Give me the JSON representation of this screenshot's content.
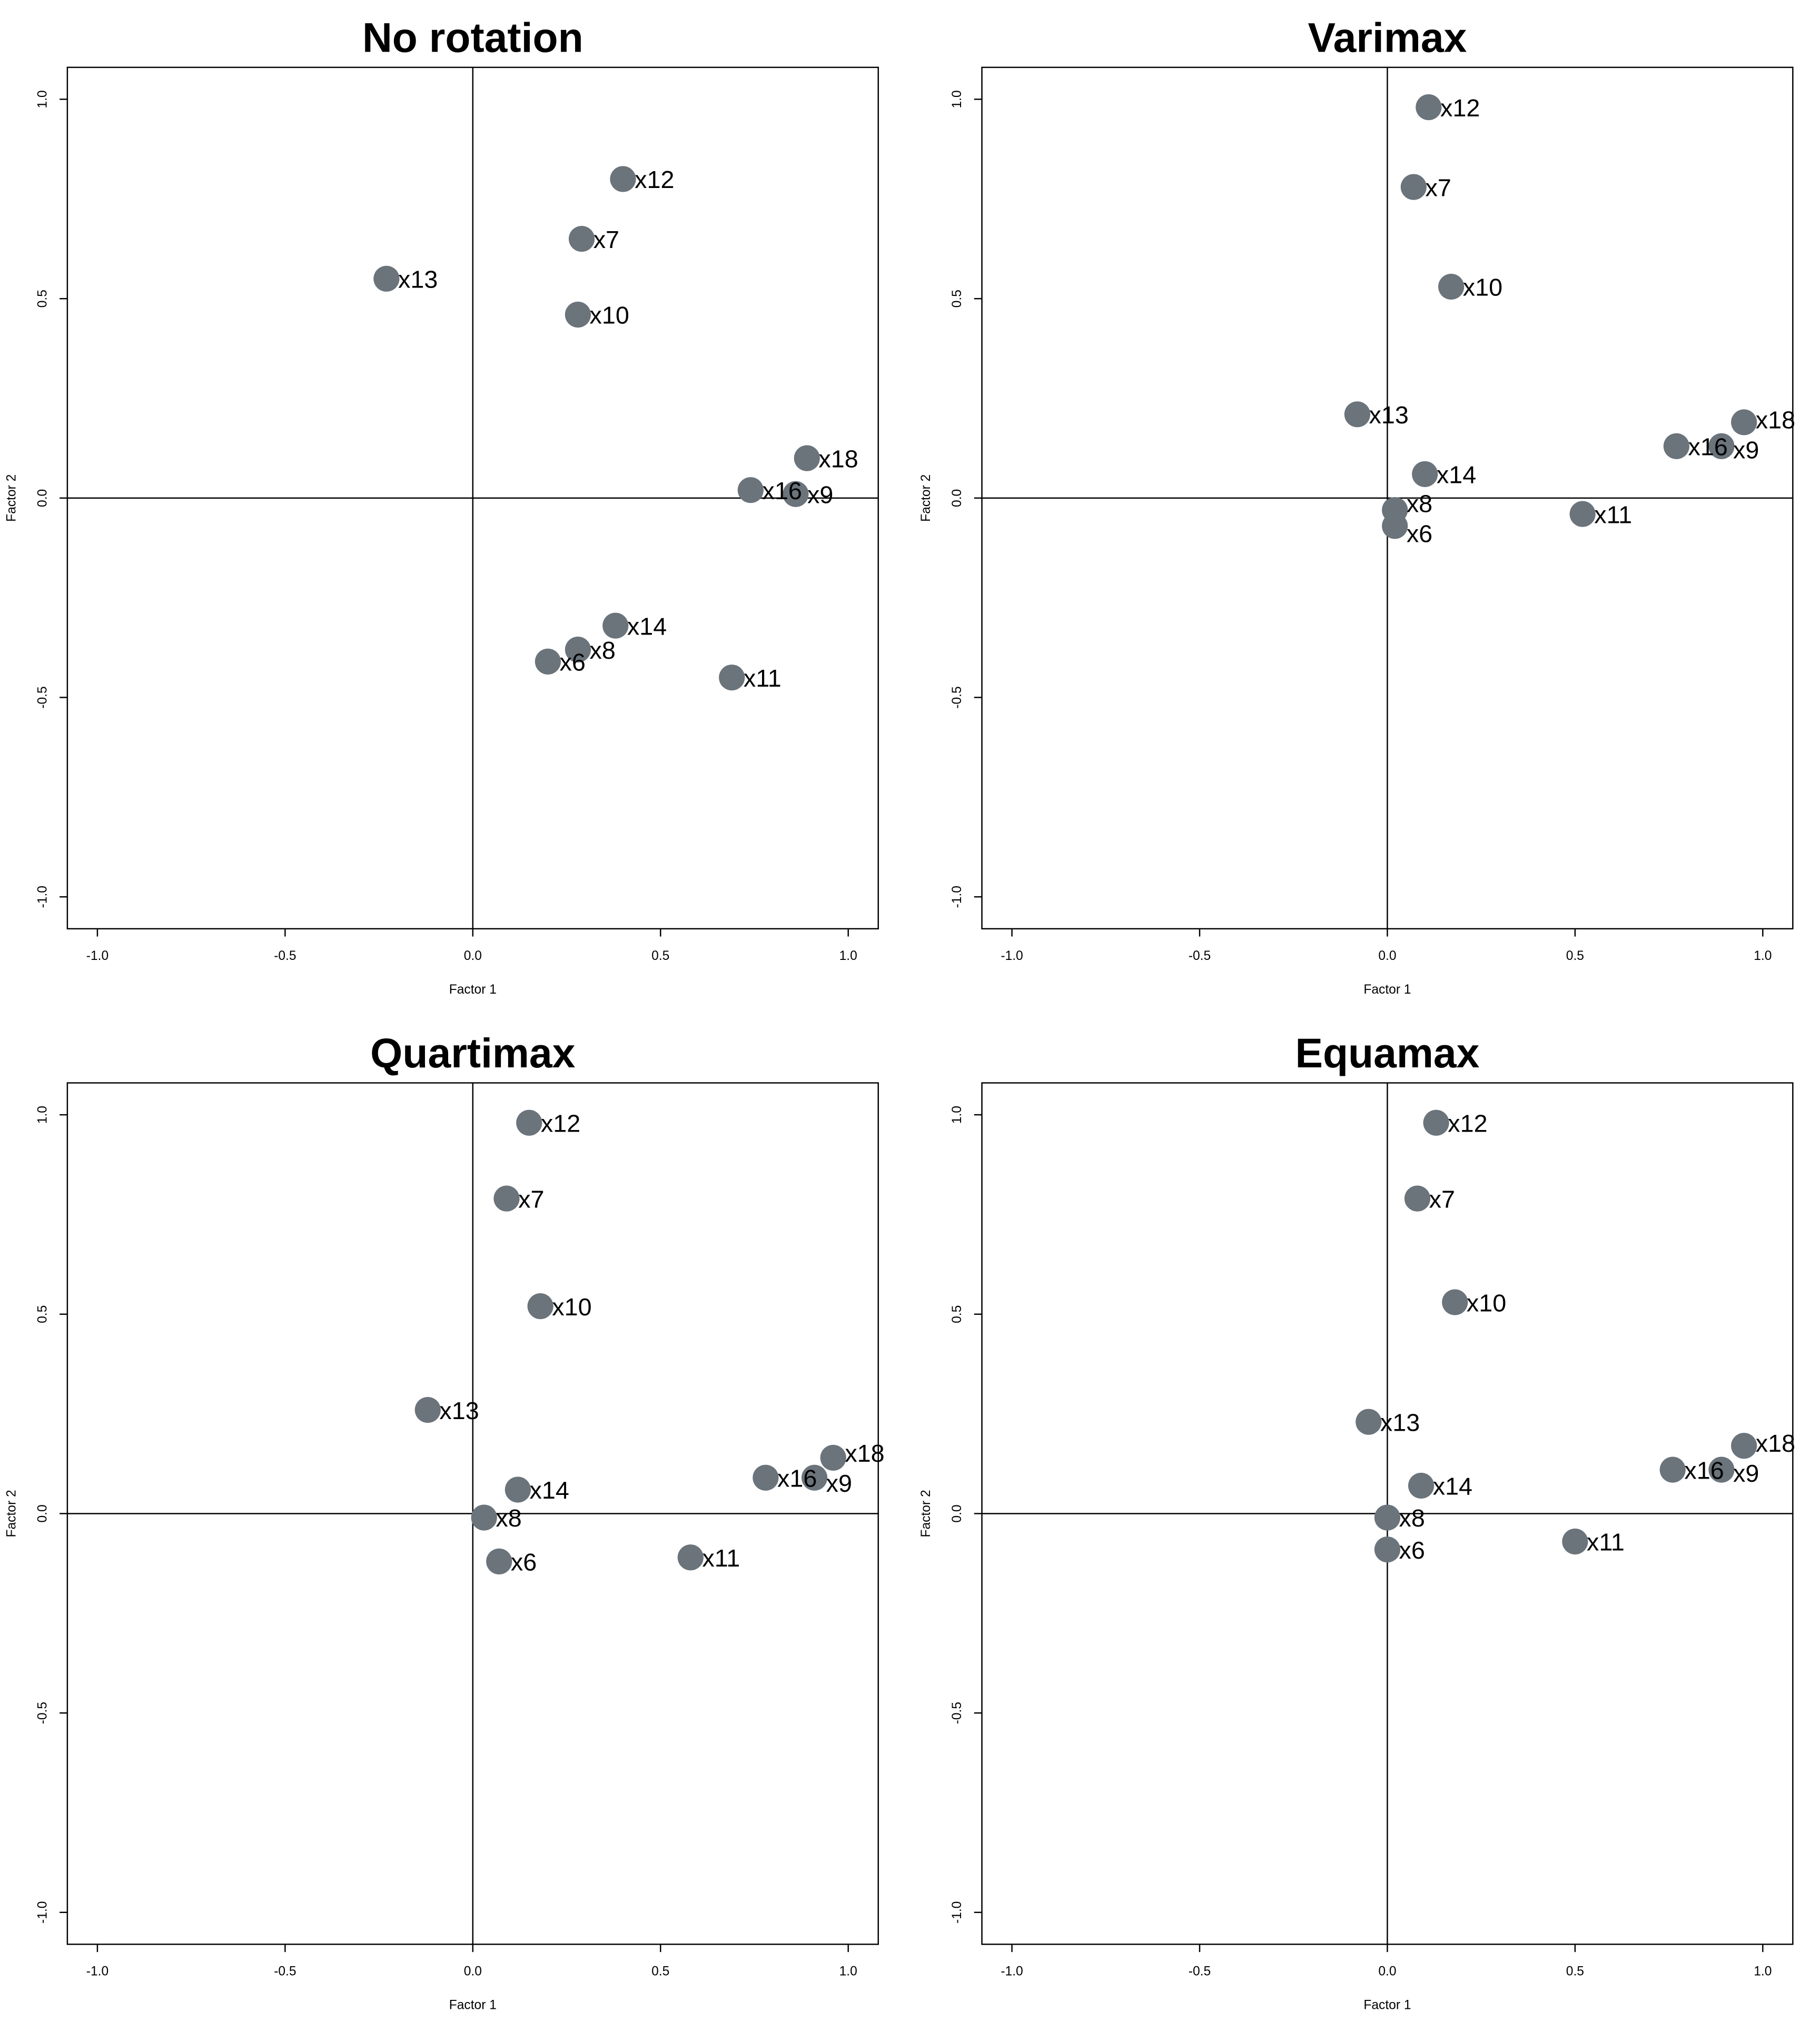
{
  "point_color": "#6b737b",
  "chart_data": [
    {
      "type": "scatter",
      "title": "No rotation",
      "xlabel": "Factor 1",
      "ylabel": "Factor 2",
      "xlim": [
        -1.08,
        1.08
      ],
      "ylim": [
        -1.08,
        1.08
      ],
      "xticks": [
        "-1.0",
        "-0.5",
        "0.0",
        "0.5",
        "1.0"
      ],
      "yticks": [
        "-1.0",
        "-0.5",
        "0.0",
        "0.5",
        "1.0"
      ],
      "points": [
        {
          "label": "x12",
          "x": 0.4,
          "y": 0.8
        },
        {
          "label": "x7",
          "x": 0.29,
          "y": 0.65
        },
        {
          "label": "x13",
          "x": -0.23,
          "y": 0.55
        },
        {
          "label": "x10",
          "x": 0.28,
          "y": 0.46
        },
        {
          "label": "x18",
          "x": 0.89,
          "y": 0.1
        },
        {
          "label": "x16",
          "x": 0.74,
          "y": 0.02
        },
        {
          "label": "x9",
          "x": 0.86,
          "y": 0.01
        },
        {
          "label": "x14",
          "x": 0.38,
          "y": -0.32
        },
        {
          "label": "x8",
          "x": 0.28,
          "y": -0.38
        },
        {
          "label": "x6",
          "x": 0.2,
          "y": -0.41
        },
        {
          "label": "x11",
          "x": 0.69,
          "y": -0.45
        }
      ]
    },
    {
      "type": "scatter",
      "title": "Varimax",
      "xlabel": "Factor 1",
      "ylabel": "Factor 2",
      "xlim": [
        -1.08,
        1.08
      ],
      "ylim": [
        -1.08,
        1.08
      ],
      "xticks": [
        "-1.0",
        "-0.5",
        "0.0",
        "0.5",
        "1.0"
      ],
      "yticks": [
        "-1.0",
        "-0.5",
        "0.0",
        "0.5",
        "1.0"
      ],
      "points": [
        {
          "label": "x12",
          "x": 0.11,
          "y": 0.98
        },
        {
          "label": "x7",
          "x": 0.07,
          "y": 0.78
        },
        {
          "label": "x10",
          "x": 0.17,
          "y": 0.53
        },
        {
          "label": "x13",
          "x": -0.08,
          "y": 0.21
        },
        {
          "label": "x18",
          "x": 0.95,
          "y": 0.19
        },
        {
          "label": "x16",
          "x": 0.77,
          "y": 0.13
        },
        {
          "label": "x9",
          "x": 0.89,
          "y": 0.13
        },
        {
          "label": "x14",
          "x": 0.1,
          "y": 0.06
        },
        {
          "label": "x8",
          "x": 0.02,
          "y": -0.03
        },
        {
          "label": "x6",
          "x": 0.02,
          "y": -0.07
        },
        {
          "label": "x11",
          "x": 0.52,
          "y": -0.04
        }
      ]
    },
    {
      "type": "scatter",
      "title": "Quartimax",
      "xlabel": "Factor 1",
      "ylabel": "Factor 2",
      "xlim": [
        -1.08,
        1.08
      ],
      "ylim": [
        -1.08,
        1.08
      ],
      "xticks": [
        "-1.0",
        "-0.5",
        "0.0",
        "0.5",
        "1.0"
      ],
      "yticks": [
        "-1.0",
        "-0.5",
        "0.0",
        "0.5",
        "1.0"
      ],
      "points": [
        {
          "label": "x12",
          "x": 0.15,
          "y": 0.98
        },
        {
          "label": "x7",
          "x": 0.09,
          "y": 0.79
        },
        {
          "label": "x10",
          "x": 0.18,
          "y": 0.52
        },
        {
          "label": "x13",
          "x": -0.12,
          "y": 0.26
        },
        {
          "label": "x18",
          "x": 0.96,
          "y": 0.14
        },
        {
          "label": "x16",
          "x": 0.78,
          "y": 0.09
        },
        {
          "label": "x9",
          "x": 0.91,
          "y": 0.09
        },
        {
          "label": "x14",
          "x": 0.12,
          "y": 0.06
        },
        {
          "label": "x8",
          "x": 0.03,
          "y": -0.01
        },
        {
          "label": "x6",
          "x": 0.07,
          "y": -0.12
        },
        {
          "label": "x11",
          "x": 0.58,
          "y": -0.11
        }
      ]
    },
    {
      "type": "scatter",
      "title": "Equamax",
      "xlabel": "Factor 1",
      "ylabel": "Factor 2",
      "xlim": [
        -1.08,
        1.08
      ],
      "ylim": [
        -1.08,
        1.08
      ],
      "xticks": [
        "-1.0",
        "-0.5",
        "0.0",
        "0.5",
        "1.0"
      ],
      "yticks": [
        "-1.0",
        "-0.5",
        "0.0",
        "0.5",
        "1.0"
      ],
      "points": [
        {
          "label": "x12",
          "x": 0.13,
          "y": 0.98
        },
        {
          "label": "x7",
          "x": 0.08,
          "y": 0.79
        },
        {
          "label": "x10",
          "x": 0.18,
          "y": 0.53
        },
        {
          "label": "x13",
          "x": -0.05,
          "y": 0.23
        },
        {
          "label": "x18",
          "x": 0.95,
          "y": 0.17
        },
        {
          "label": "x16",
          "x": 0.76,
          "y": 0.11
        },
        {
          "label": "x9",
          "x": 0.89,
          "y": 0.11
        },
        {
          "label": "x14",
          "x": 0.09,
          "y": 0.07
        },
        {
          "label": "x8",
          "x": 0.0,
          "y": -0.01
        },
        {
          "label": "x6",
          "x": 0.0,
          "y": -0.09
        },
        {
          "label": "x11",
          "x": 0.5,
          "y": -0.07
        }
      ]
    }
  ]
}
